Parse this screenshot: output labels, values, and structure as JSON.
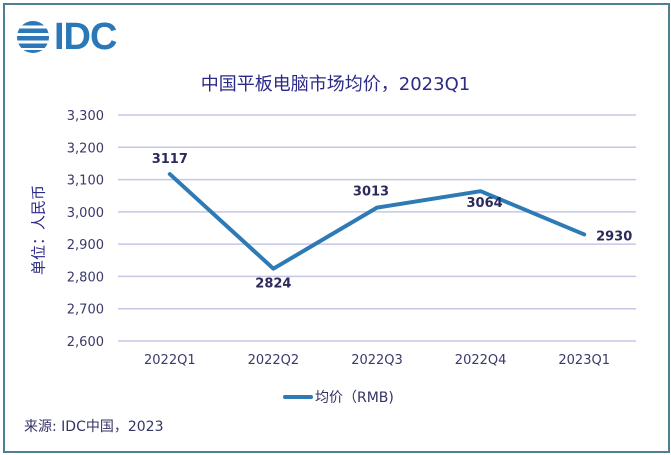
{
  "logo": {
    "text": "IDC"
  },
  "chart_title": "中国平板电脑市场均价，2023Q1",
  "y_axis_label": "单位：人民币",
  "y_ticks": [
    "3,300",
    "3,200",
    "3,100",
    "3,000",
    "2,900",
    "2,800",
    "2,700",
    "2,600"
  ],
  "x_ticks": [
    "2022Q1",
    "2022Q2",
    "2022Q3",
    "2022Q4",
    "2023Q1"
  ],
  "data_labels": [
    "3117",
    "2824",
    "3013",
    "3064",
    "2930"
  ],
  "legend": {
    "label": "均价（RMB)"
  },
  "source": "来源: IDC中国，2023",
  "colors": {
    "line": "#2e7ab5",
    "text": "#2b2a86",
    "grid": "#c5c7e6",
    "frame": "#4f7f92",
    "logo": "#2a78b8"
  },
  "chart_data": {
    "type": "line",
    "title": "中国平板电脑市场均价，2023Q1",
    "xlabel": "",
    "ylabel": "单位：人民币",
    "categories": [
      "2022Q1",
      "2022Q2",
      "2022Q3",
      "2022Q4",
      "2023Q1"
    ],
    "series": [
      {
        "name": "均价（RMB)",
        "values": [
          3117,
          2824,
          3013,
          3064,
          2930
        ]
      }
    ],
    "ylim": [
      2600,
      3300
    ],
    "yticks": [
      2600,
      2700,
      2800,
      2900,
      3000,
      3100,
      3200,
      3300
    ],
    "grid": true,
    "legend_position": "bottom",
    "data_labels": true,
    "source": "来源: IDC中国，2023"
  }
}
